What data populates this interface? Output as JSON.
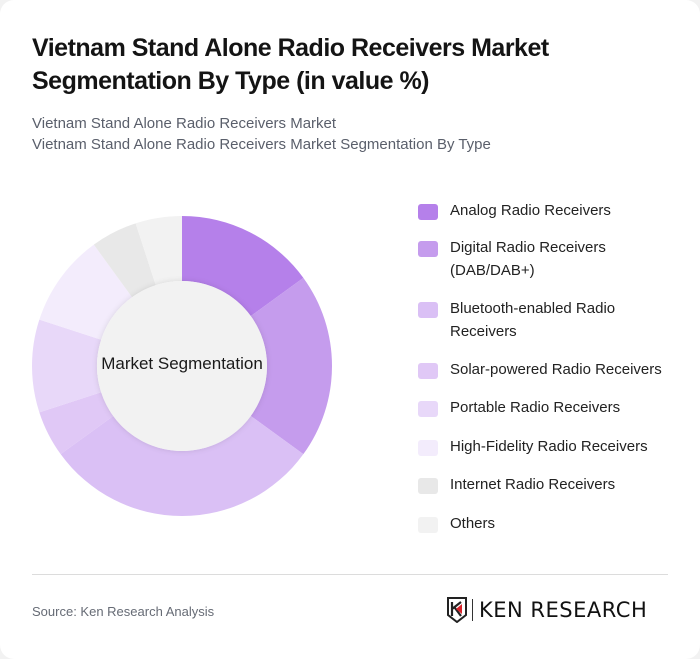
{
  "header": {
    "title": "Vietnam Stand Alone Radio Receivers Market Segmentation By Type (in value %)",
    "subtitle_line1": "Vietnam Stand Alone Radio Receivers Market",
    "subtitle_line2": "Vietnam Stand Alone Radio Receivers Market Segmentation By Type"
  },
  "chart_data": {
    "type": "pie",
    "variant": "donut",
    "title": "Vietnam Stand Alone Radio Receivers Market Segmentation By Type (in value %)",
    "center_label": "Market Segmentation",
    "categories": [
      "Analog Radio Receivers",
      "Digital Radio Receivers (DAB/DAB+)",
      "Bluetooth-enabled Radio Receivers",
      "Solar-powered Radio Receivers",
      "Portable Radio Receivers",
      "High-Fidelity Radio Receivers",
      "Internet Radio Receivers",
      "Others"
    ],
    "values": [
      15,
      20,
      30,
      5,
      10,
      10,
      5,
      5
    ],
    "colors": [
      "#b580ea",
      "#c59ced",
      "#dac0f5",
      "#e0c8f6",
      "#e8d8f9",
      "#f3ecfc",
      "#e8e8e8",
      "#f2f2f2"
    ],
    "legend_position": "right",
    "unit": "%"
  },
  "legend": {
    "items": [
      {
        "label": "Analog Radio Receivers",
        "color": "#b580ea"
      },
      {
        "label": "Digital Radio Receivers (DAB/DAB+)",
        "color": "#c59ced"
      },
      {
        "label": "Bluetooth-enabled Radio Receivers",
        "color": "#dac0f5"
      },
      {
        "label": "Solar-powered Radio Receivers",
        "color": "#e0c8f6"
      },
      {
        "label": "Portable Radio Receivers",
        "color": "#e8d8f9"
      },
      {
        "label": "High-Fidelity Radio Receivers",
        "color": "#f3ecfc"
      },
      {
        "label": "Internet Radio Receivers",
        "color": "#e8e8e8"
      },
      {
        "label": "Others",
        "color": "#f2f2f2"
      }
    ]
  },
  "footer": {
    "source": "Source: Ken Research Analysis",
    "logo_text": "KEN RESEARCH"
  }
}
